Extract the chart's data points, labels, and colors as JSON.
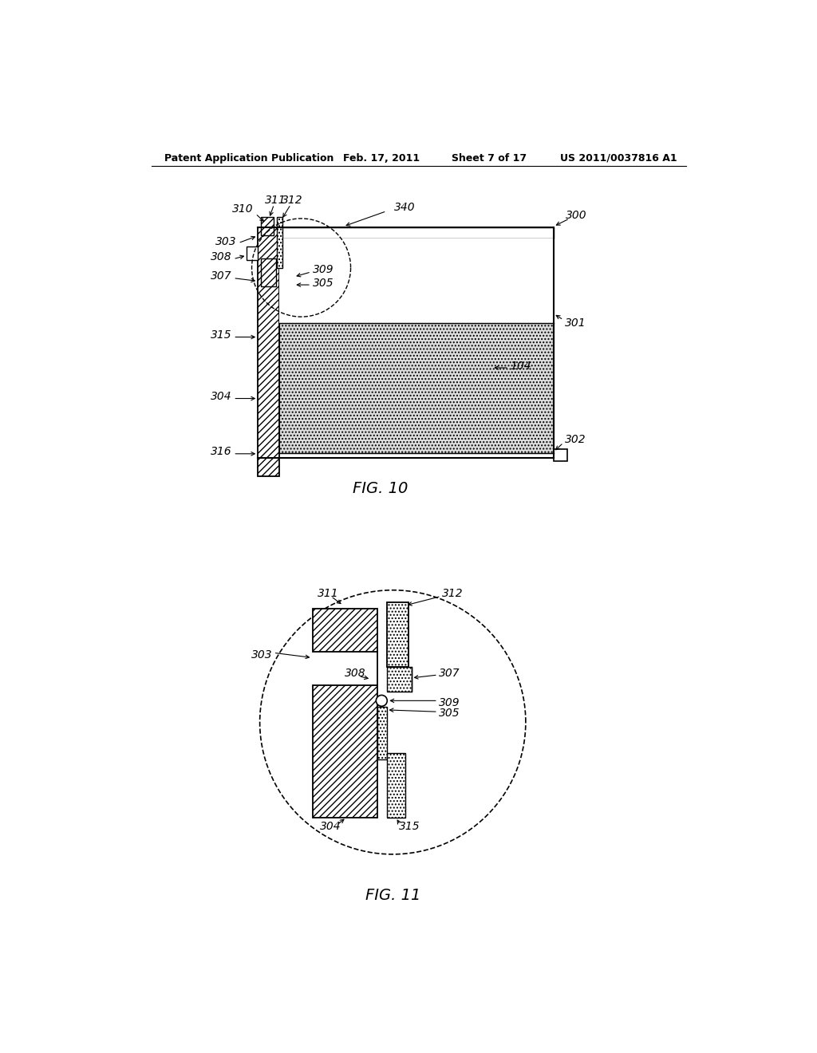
{
  "title_header": "Patent Application Publication",
  "header_date": "Feb. 17, 2011",
  "header_sheet": "Sheet 7 of 17",
  "header_patent": "US 2011/0037816 A1",
  "fig10_label": "FIG. 10",
  "fig11_label": "FIG. 11",
  "bg_color": "#ffffff",
  "line_color": "#000000"
}
